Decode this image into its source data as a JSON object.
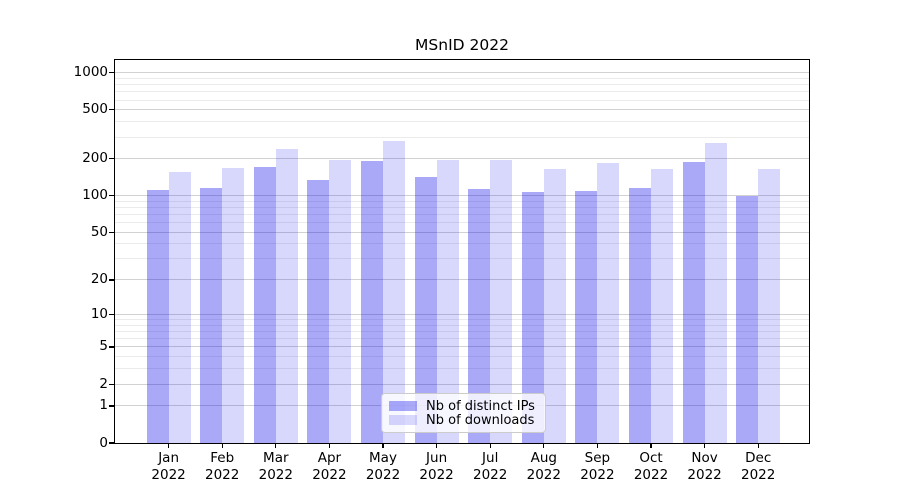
{
  "figure": {
    "background": "#ffffff",
    "spine_color": "#000000",
    "grid_major_color": "#d2d2d2",
    "grid_minor_color": "#ebebeb"
  },
  "chart_data": {
    "type": "bar",
    "title": "MSnID 2022",
    "xlabel": "",
    "ylabel": "",
    "y_scale": "log1p",
    "ylim": [
      0,
      1300
    ],
    "grid": true,
    "legend_position": "lower center",
    "categories": [
      "Jan",
      "Feb",
      "Mar",
      "Apr",
      "May",
      "Jun",
      "Jul",
      "Aug",
      "Sep",
      "Oct",
      "Nov",
      "Dec"
    ],
    "year_label": "2022",
    "y_ticks": [
      0,
      1,
      2,
      5,
      10,
      20,
      50,
      100,
      200,
      500,
      1000
    ],
    "y_minor_ticks": [
      3,
      4,
      6,
      7,
      8,
      9,
      30,
      40,
      60,
      70,
      80,
      90,
      300,
      400,
      600,
      700,
      800,
      900
    ],
    "series": [
      {
        "key": "distinct-ips",
        "name": "Nb of distinct IPs",
        "color": "#0a0aeb59",
        "values": [
          112,
          115,
          170,
          133,
          193,
          141,
          113,
          108,
          110,
          115,
          188,
          100
        ]
      },
      {
        "key": "downloads",
        "name": "Nb of downloads",
        "color": "#0a0aeb29",
        "values": [
          157,
          167,
          239,
          194,
          277,
          194,
          196,
          164,
          183,
          164,
          269,
          164
        ]
      }
    ]
  }
}
